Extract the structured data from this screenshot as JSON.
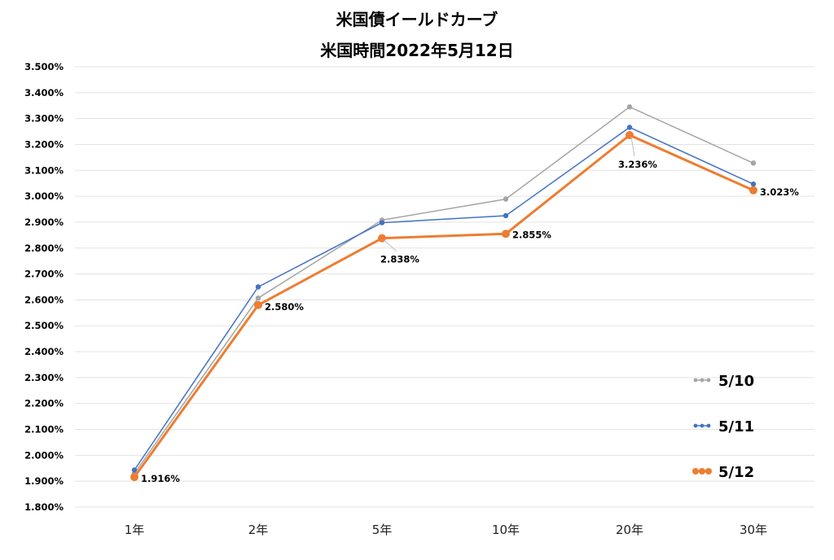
{
  "chart_data": {
    "type": "line",
    "title": [
      "米国債イールドカーブ",
      "米国時間2022年5月12日"
    ],
    "xlabel": "",
    "ylabel": "",
    "categories": [
      "1年",
      "2年",
      "5年",
      "10年",
      "20年",
      "30年"
    ],
    "ylim": [
      1.8,
      3.5
    ],
    "ytick_step": 0.1,
    "ytick_format": "0.000%",
    "grid": true,
    "legend_position": "right",
    "series": [
      {
        "name": "5/10",
        "color": "#a5a5a5",
        "values": [
          1.93,
          2.607,
          2.908,
          2.989,
          3.345,
          3.128
        ]
      },
      {
        "name": "5/11",
        "color": "#4472c4",
        "values": [
          1.943,
          2.65,
          2.898,
          2.925,
          3.266,
          3.047
        ]
      },
      {
        "name": "5/12",
        "color": "#ed7d31",
        "values": [
          1.916,
          2.58,
          2.838,
          2.855,
          3.236,
          3.023
        ],
        "data_labels": [
          "1.916%",
          "2.580%",
          "2.838%",
          "2.855%",
          "3.236%",
          "3.023%"
        ]
      }
    ]
  }
}
